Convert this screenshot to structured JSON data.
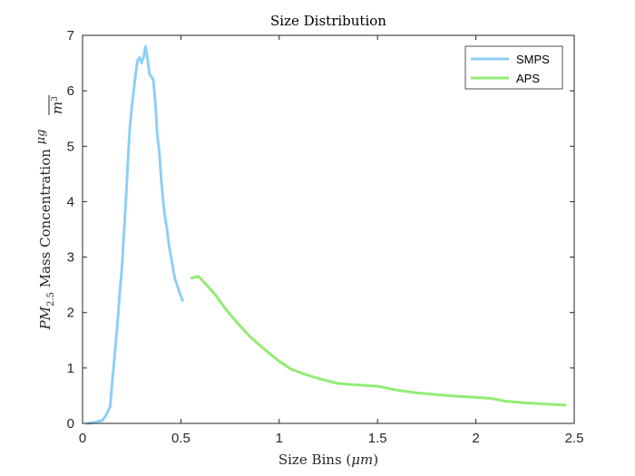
{
  "chart_data": {
    "type": "line",
    "title": "Size Distribution",
    "xlabel": "Size Bins (μm)",
    "ylabel": "PM2.5 Mass Concentration μg/m³",
    "xlim": [
      0,
      2.5
    ],
    "ylim": [
      0,
      7
    ],
    "x_ticks": [
      "0",
      "0.5",
      "1",
      "1.5",
      "2",
      "2.5"
    ],
    "y_ticks": [
      "0",
      "1",
      "2",
      "3",
      "4",
      "5",
      "6",
      "7"
    ],
    "grid": false,
    "legend_position": "top-right",
    "series": [
      {
        "name": "SMPS",
        "color": "#8ECFF5",
        "points": [
          [
            0.015,
            0.0
          ],
          [
            0.03,
            0.0
          ],
          [
            0.06,
            0.02
          ],
          [
            0.1,
            0.05
          ],
          [
            0.12,
            0.15
          ],
          [
            0.14,
            0.3
          ],
          [
            0.15,
            0.7
          ],
          [
            0.16,
            1.1
          ],
          [
            0.17,
            1.5
          ],
          [
            0.18,
            1.9
          ],
          [
            0.19,
            2.4
          ],
          [
            0.2,
            2.8
          ],
          [
            0.21,
            3.4
          ],
          [
            0.22,
            4.0
          ],
          [
            0.23,
            4.7
          ],
          [
            0.24,
            5.3
          ],
          [
            0.25,
            5.7
          ],
          [
            0.26,
            6.0
          ],
          [
            0.27,
            6.3
          ],
          [
            0.28,
            6.55
          ],
          [
            0.29,
            6.6
          ],
          [
            0.3,
            6.5
          ],
          [
            0.31,
            6.6
          ],
          [
            0.32,
            6.8
          ],
          [
            0.33,
            6.6
          ],
          [
            0.34,
            6.3
          ],
          [
            0.35,
            6.25
          ],
          [
            0.36,
            6.2
          ],
          [
            0.37,
            5.8
          ],
          [
            0.38,
            5.2
          ],
          [
            0.39,
            4.9
          ],
          [
            0.4,
            4.4
          ],
          [
            0.41,
            4.0
          ],
          [
            0.42,
            3.7
          ],
          [
            0.43,
            3.5
          ],
          [
            0.44,
            3.2
          ],
          [
            0.45,
            3.0
          ],
          [
            0.46,
            2.8
          ],
          [
            0.47,
            2.6
          ],
          [
            0.48,
            2.5
          ],
          [
            0.49,
            2.4
          ],
          [
            0.5,
            2.3
          ],
          [
            0.51,
            2.2
          ]
        ]
      },
      {
        "name": "APS",
        "color": "#92EC74",
        "points": [
          [
            0.55,
            2.62
          ],
          [
            0.59,
            2.65
          ],
          [
            0.63,
            2.5
          ],
          [
            0.68,
            2.3
          ],
          [
            0.73,
            2.05
          ],
          [
            0.79,
            1.8
          ],
          [
            0.85,
            1.57
          ],
          [
            0.92,
            1.35
          ],
          [
            1.0,
            1.12
          ],
          [
            1.06,
            0.98
          ],
          [
            1.12,
            0.9
          ],
          [
            1.2,
            0.81
          ],
          [
            1.3,
            0.72
          ],
          [
            1.45,
            0.68
          ],
          [
            1.5,
            0.67
          ],
          [
            1.6,
            0.6
          ],
          [
            1.7,
            0.55
          ],
          [
            1.8,
            0.52
          ],
          [
            1.9,
            0.49
          ],
          [
            2.0,
            0.47
          ],
          [
            2.08,
            0.45
          ],
          [
            2.15,
            0.4
          ],
          [
            2.25,
            0.37
          ],
          [
            2.35,
            0.35
          ],
          [
            2.46,
            0.33
          ]
        ]
      }
    ]
  }
}
